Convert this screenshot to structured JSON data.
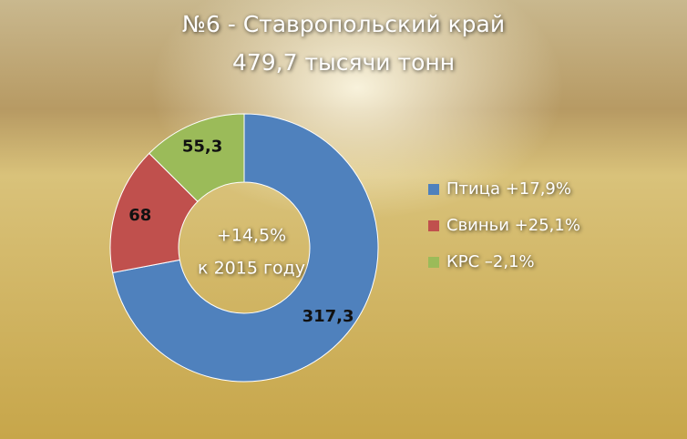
{
  "chart_data": {
    "type": "donut",
    "title": "№6 - Ставропольский край",
    "subtitle": "479,7 тысячи тонн",
    "annotations": [
      "+14,5%",
      "к 2015 году"
    ],
    "categories": [
      "Птица  +17,9%",
      "Свиньи +25,1%",
      "КРС –2,1%"
    ],
    "values": [
      317.3,
      68,
      55.3
    ],
    "value_labels": [
      "317,3",
      "68",
      "55,3"
    ],
    "colors": [
      "#4f81bd",
      "#c0504d",
      "#9bbb59"
    ],
    "legend": "right"
  }
}
